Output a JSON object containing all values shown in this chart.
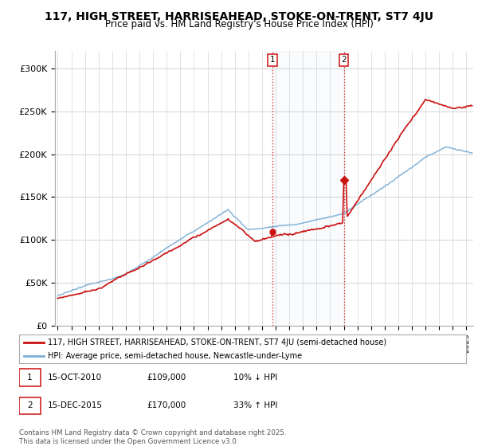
{
  "title": "117, HIGH STREET, HARRISEAHEAD, STOKE-ON-TRENT, ST7 4JU",
  "subtitle": "Price paid vs. HM Land Registry's House Price Index (HPI)",
  "ylim": [
    0,
    320000
  ],
  "yticks": [
    0,
    50000,
    100000,
    150000,
    200000,
    250000,
    300000
  ],
  "ytick_labels": [
    "£0",
    "£50K",
    "£100K",
    "£150K",
    "£200K",
    "£250K",
    "£300K"
  ],
  "hpi_color": "#7aadd4",
  "price_color": "#cc1111",
  "legend_line1": "117, HIGH STREET, HARRISEAHEAD, STOKE-ON-TRENT, ST7 4JU (semi-detached house)",
  "legend_line2": "HPI: Average price, semi-detached house, Newcastle-under-Lyme",
  "annotation1_date": "15-OCT-2010",
  "annotation1_price": "£109,000",
  "annotation1_hpi": "10% ↓ HPI",
  "annotation2_date": "15-DEC-2015",
  "annotation2_price": "£170,000",
  "annotation2_hpi": "33% ↑ HPI",
  "footer": "Contains HM Land Registry data © Crown copyright and database right 2025.\nThis data is licensed under the Open Government Licence v3.0.",
  "sale1_year": 2010.79,
  "sale1_price": 109000,
  "sale2_year": 2015.96,
  "sale2_price": 170000
}
